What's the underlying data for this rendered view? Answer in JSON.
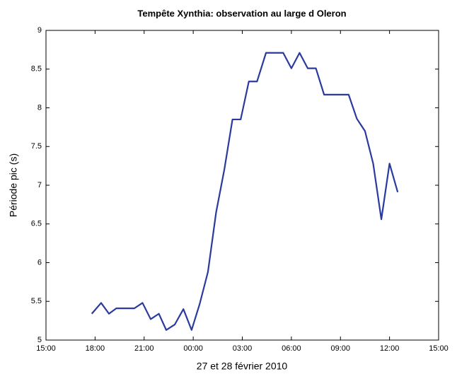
{
  "chart_data": {
    "type": "line",
    "title": "Tempête Xynthia: observation au large d Oleron",
    "x_label": "27 et 28 février 2010",
    "y_label": "Période pic (s)",
    "x": [
      17.8,
      18.37,
      18.85,
      19.3,
      20.4,
      20.9,
      21.4,
      21.9,
      22.35,
      22.87,
      23.4,
      23.9,
      24.4,
      24.9,
      25.4,
      25.9,
      26.4,
      26.9,
      27.4,
      27.9,
      28.45,
      29.5,
      30.0,
      30.5,
      31.0,
      31.5,
      32.0,
      33.5,
      34.0,
      34.5,
      35.0,
      35.5,
      36.0,
      36.5
    ],
    "series": [
      {
        "name": "Période pic",
        "color": "#2b3a9e",
        "values": [
          5.34,
          5.48,
          5.34,
          5.41,
          5.41,
          5.48,
          5.27,
          5.34,
          5.13,
          5.2,
          5.4,
          5.13,
          5.47,
          5.88,
          6.65,
          7.2,
          7.85,
          7.85,
          8.34,
          8.34,
          8.71,
          8.71,
          8.51,
          8.71,
          8.51,
          8.51,
          8.17,
          8.17,
          7.86,
          7.7,
          7.28,
          6.56,
          7.28,
          6.91
        ]
      }
    ],
    "xlim": [
      15,
      39
    ],
    "xticks": [
      {
        "value": 15,
        "label": "15:00"
      },
      {
        "value": 18,
        "label": "18:00"
      },
      {
        "value": 21,
        "label": "21:00"
      },
      {
        "value": 24,
        "label": "00:00"
      },
      {
        "value": 27,
        "label": "03:00"
      },
      {
        "value": 30,
        "label": "06:00"
      },
      {
        "value": 33,
        "label": "09:00"
      },
      {
        "value": 36,
        "label": "12:00"
      },
      {
        "value": 39,
        "label": "15:00"
      }
    ],
    "ylim": [
      5,
      9
    ],
    "yticks": [
      5,
      5.5,
      6,
      6.5,
      7,
      7.5,
      8,
      8.5,
      9
    ],
    "grid": false
  }
}
